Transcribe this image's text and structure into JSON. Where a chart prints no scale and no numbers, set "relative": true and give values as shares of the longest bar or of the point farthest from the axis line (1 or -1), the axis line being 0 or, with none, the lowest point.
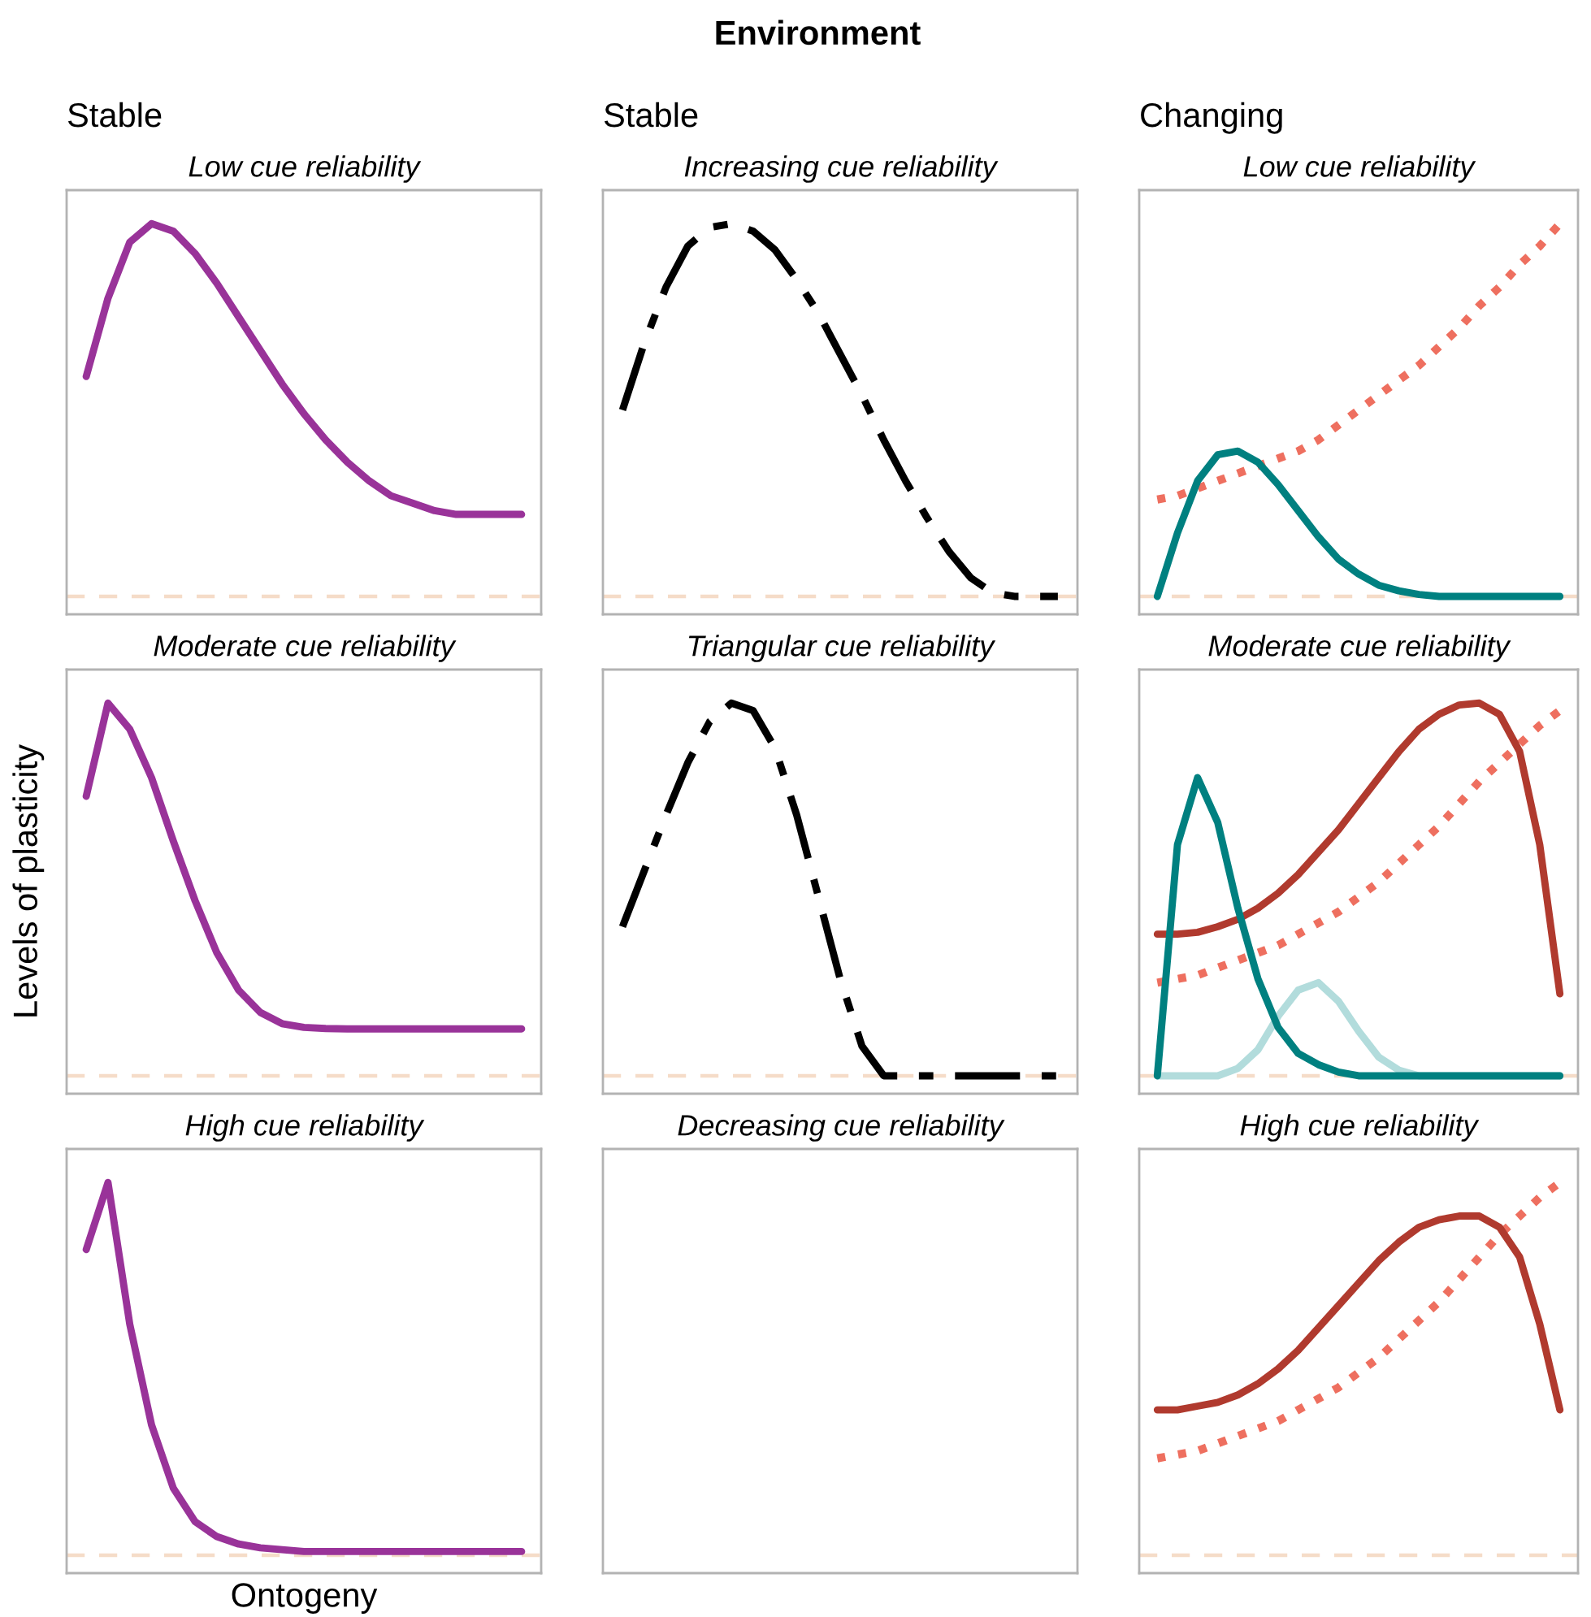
{
  "chart_data": [
    {
      "type": "line",
      "relative": true,
      "annotations": [
        "Environment"
      ],
      "subtitle": "Stable",
      "title": "Low cue reliability",
      "tick_labels": false,
      "categories": [
        null,
        null,
        null,
        null,
        null,
        null,
        null,
        null,
        null,
        null,
        null,
        null,
        null,
        null,
        null,
        null,
        null,
        null,
        null,
        null,
        null
      ],
      "ref_lines": [
        {
          "axis": "y",
          "value": 0,
          "color": "#f5dcc8",
          "line_style": "dashed"
        }
      ],
      "series": [
        {
          "color": "#993399",
          "line_style": "solid",
          "values": [
            0.59,
            0.8,
            0.95,
            1.0,
            0.98,
            0.92,
            0.84,
            0.75,
            0.66,
            0.57,
            0.49,
            0.42,
            0.36,
            0.31,
            0.27,
            0.25,
            0.23,
            0.22,
            0.22,
            0.22,
            0.22
          ]
        }
      ]
    },
    {
      "type": "line",
      "relative": true,
      "subtitle": "Stable",
      "title": "Increasing cue reliability",
      "tick_labels": false,
      "categories": [
        null,
        null,
        null,
        null,
        null,
        null,
        null,
        null,
        null,
        null,
        null,
        null,
        null,
        null,
        null,
        null,
        null,
        null,
        null,
        null,
        null
      ],
      "ref_lines": [
        {
          "axis": "y",
          "value": 0,
          "color": "#f5dcc8",
          "line_style": "dashed"
        }
      ],
      "series": [
        {
          "color": "#000000",
          "line_style": "dashed",
          "values": [
            0.5,
            0.68,
            0.83,
            0.94,
            0.99,
            1.0,
            0.98,
            0.93,
            0.85,
            0.76,
            0.65,
            0.54,
            0.42,
            0.31,
            0.21,
            0.12,
            0.05,
            0.01,
            0,
            0,
            0
          ]
        }
      ]
    },
    {
      "type": "line",
      "relative": true,
      "subtitle": "Changing",
      "title": "Low cue reliability",
      "tick_labels": false,
      "categories": [
        null,
        null,
        null,
        null,
        null,
        null,
        null,
        null,
        null,
        null,
        null,
        null,
        null,
        null,
        null,
        null,
        null,
        null,
        null,
        null,
        null
      ],
      "ref_lines": [
        {
          "axis": "y",
          "value": 0,
          "color": "#f5dcc8",
          "line_style": "dashed"
        }
      ],
      "series": [
        {
          "color": "#ee6f5f",
          "line_style": "dotted",
          "values": [
            0.26,
            0.27,
            0.29,
            0.31,
            0.33,
            0.35,
            0.37,
            0.39,
            0.42,
            0.46,
            0.5,
            0.54,
            0.58,
            0.62,
            0.67,
            0.72,
            0.78,
            0.83,
            0.89,
            0.94,
            1.0
          ]
        },
        {
          "color": "#008080",
          "line_style": "solid",
          "values": [
            0,
            0.17,
            0.31,
            0.38,
            0.39,
            0.36,
            0.3,
            0.23,
            0.16,
            0.1,
            0.06,
            0.03,
            0.015,
            0.005,
            0,
            0,
            0,
            0,
            0,
            0,
            0
          ]
        }
      ]
    },
    {
      "type": "line",
      "relative": true,
      "ylabel": "Levels of plasticity",
      "title": "Moderate cue reliability",
      "tick_labels": false,
      "categories": [
        null,
        null,
        null,
        null,
        null,
        null,
        null,
        null,
        null,
        null,
        null,
        null,
        null,
        null,
        null,
        null,
        null,
        null,
        null,
        null,
        null
      ],
      "ref_lines": [
        {
          "axis": "y",
          "value": 0,
          "color": "#f5dcc8",
          "line_style": "dashed"
        }
      ],
      "series": [
        {
          "color": "#993399",
          "line_style": "solid",
          "values": [
            0.75,
            1.0,
            0.93,
            0.8,
            0.63,
            0.47,
            0.33,
            0.23,
            0.17,
            0.14,
            0.13,
            0.127,
            0.126,
            0.126,
            0.126,
            0.126,
            0.126,
            0.126,
            0.126,
            0.126,
            0.126
          ]
        }
      ]
    },
    {
      "type": "line",
      "relative": true,
      "title": "Triangular cue reliability",
      "tick_labels": false,
      "categories": [
        null,
        null,
        null,
        null,
        null,
        null,
        null,
        null,
        null,
        null,
        null,
        null,
        null,
        null,
        null,
        null,
        null,
        null,
        null,
        null,
        null
      ],
      "ref_lines": [
        {
          "axis": "y",
          "value": 0,
          "color": "#f5dcc8",
          "line_style": "dashed"
        }
      ],
      "series": [
        {
          "color": "#000000",
          "line_style": "dashed",
          "values": [
            0.4,
            0.55,
            0.7,
            0.84,
            0.95,
            1.0,
            0.98,
            0.88,
            0.7,
            0.48,
            0.26,
            0.08,
            0,
            0,
            0,
            0,
            0,
            0,
            0,
            0,
            0
          ]
        }
      ]
    },
    {
      "type": "line",
      "relative": true,
      "title": "Moderate cue reliability",
      "tick_labels": false,
      "categories": [
        null,
        null,
        null,
        null,
        null,
        null,
        null,
        null,
        null,
        null,
        null,
        null,
        null,
        null,
        null,
        null,
        null,
        null,
        null,
        null,
        null
      ],
      "ref_lines": [
        {
          "axis": "y",
          "value": 0,
          "color": "#f5dcc8",
          "line_style": "dashed"
        }
      ],
      "series": [
        {
          "color": "#ee6f5f",
          "line_style": "dotted",
          "values": [
            0.25,
            0.26,
            0.27,
            0.29,
            0.31,
            0.33,
            0.35,
            0.38,
            0.41,
            0.44,
            0.48,
            0.52,
            0.57,
            0.62,
            0.67,
            0.73,
            0.79,
            0.84,
            0.89,
            0.94,
            0.98
          ]
        },
        {
          "color": "#b03a2e",
          "line_style": "solid",
          "values": [
            0.38,
            0.38,
            0.385,
            0.4,
            0.42,
            0.45,
            0.49,
            0.54,
            0.6,
            0.66,
            0.73,
            0.8,
            0.87,
            0.93,
            0.97,
            0.995,
            1.0,
            0.97,
            0.87,
            0.62,
            0.22
          ]
        },
        {
          "color": "#b2dcdc",
          "line_style": "solid",
          "values": [
            0,
            0,
            0,
            0,
            0.02,
            0.07,
            0.16,
            0.23,
            0.25,
            0.2,
            0.12,
            0.05,
            0.015,
            0,
            0,
            0,
            0,
            0,
            0,
            0,
            0
          ]
        },
        {
          "color": "#008080",
          "line_style": "solid",
          "values": [
            0,
            0.62,
            0.8,
            0.68,
            0.45,
            0.26,
            0.13,
            0.06,
            0.03,
            0.01,
            0,
            0,
            0,
            0,
            0,
            0,
            0,
            0,
            0,
            0,
            0
          ]
        }
      ]
    },
    {
      "type": "line",
      "relative": true,
      "xlabel": "Ontogeny",
      "title": "High cue reliability",
      "tick_labels": false,
      "categories": [
        null,
        null,
        null,
        null,
        null,
        null,
        null,
        null,
        null,
        null,
        null,
        null,
        null,
        null,
        null,
        null,
        null,
        null,
        null,
        null,
        null
      ],
      "ref_lines": [
        {
          "axis": "y",
          "value": 0,
          "color": "#f5dcc8",
          "line_style": "dashed"
        }
      ],
      "series": [
        {
          "color": "#993399",
          "line_style": "solid",
          "values": [
            0.82,
            1.0,
            0.62,
            0.35,
            0.18,
            0.09,
            0.05,
            0.03,
            0.02,
            0.015,
            0.01,
            0.01,
            0.01,
            0.01,
            0.01,
            0.01,
            0.01,
            0.01,
            0.01,
            0.01,
            0.01
          ]
        }
      ]
    },
    {
      "type": "other",
      "title": "Decreasing cue reliability"
    },
    {
      "type": "line",
      "relative": true,
      "title": "High cue reliability",
      "tick_labels": false,
      "categories": [
        null,
        null,
        null,
        null,
        null,
        null,
        null,
        null,
        null,
        null,
        null,
        null,
        null,
        null,
        null,
        null,
        null,
        null,
        null,
        null,
        null
      ],
      "ref_lines": [
        {
          "axis": "y",
          "value": 0,
          "color": "#f5dcc8",
          "line_style": "dashed"
        }
      ],
      "series": [
        {
          "color": "#ee6f5f",
          "line_style": "dotted",
          "values": [
            0.26,
            0.27,
            0.28,
            0.3,
            0.32,
            0.34,
            0.36,
            0.39,
            0.42,
            0.45,
            0.49,
            0.53,
            0.58,
            0.63,
            0.68,
            0.74,
            0.8,
            0.86,
            0.91,
            0.96,
            1.0
          ]
        },
        {
          "color": "#b03a2e",
          "line_style": "solid",
          "values": [
            0.39,
            0.39,
            0.4,
            0.41,
            0.43,
            0.46,
            0.5,
            0.55,
            0.61,
            0.67,
            0.73,
            0.79,
            0.84,
            0.88,
            0.9,
            0.91,
            0.91,
            0.88,
            0.8,
            0.62,
            0.39
          ]
        }
      ]
    }
  ]
}
